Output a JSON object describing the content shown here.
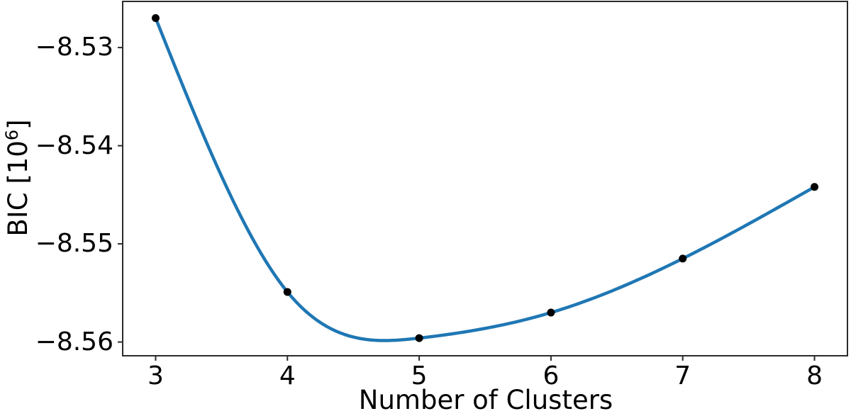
{
  "chart_data": {
    "type": "line",
    "title": "",
    "xlabel": "Number of Clusters",
    "ylabel": "BIC [10⁶]",
    "ylabel_parts": {
      "prefix": "BIC [10",
      "exponent": "6",
      "suffix": "]"
    },
    "x": [
      3,
      4,
      5,
      6,
      7,
      8
    ],
    "y": [
      -8.527,
      -8.5549,
      -8.5596,
      -8.557,
      -8.5515,
      -8.5442
    ],
    "y_units_exponent": "10^6",
    "xticks": [
      3,
      4,
      5,
      6,
      7,
      8
    ],
    "xtick_labels": [
      "3",
      "4",
      "5",
      "6",
      "7",
      "8"
    ],
    "yticks": [
      -8.53,
      -8.54,
      -8.55,
      -8.56
    ],
    "ytick_labels": [
      "−8.53",
      "−8.54",
      "−8.55",
      "−8.56"
    ],
    "xlim": [
      2.75,
      8.25
    ],
    "ylim": [
      -8.5614,
      -8.5253
    ],
    "grid": false,
    "smooth": true,
    "line_color": "#1f77b4",
    "marker_color": "#000000",
    "spine_color": "#2b2b2b",
    "text_color": "#000000"
  }
}
